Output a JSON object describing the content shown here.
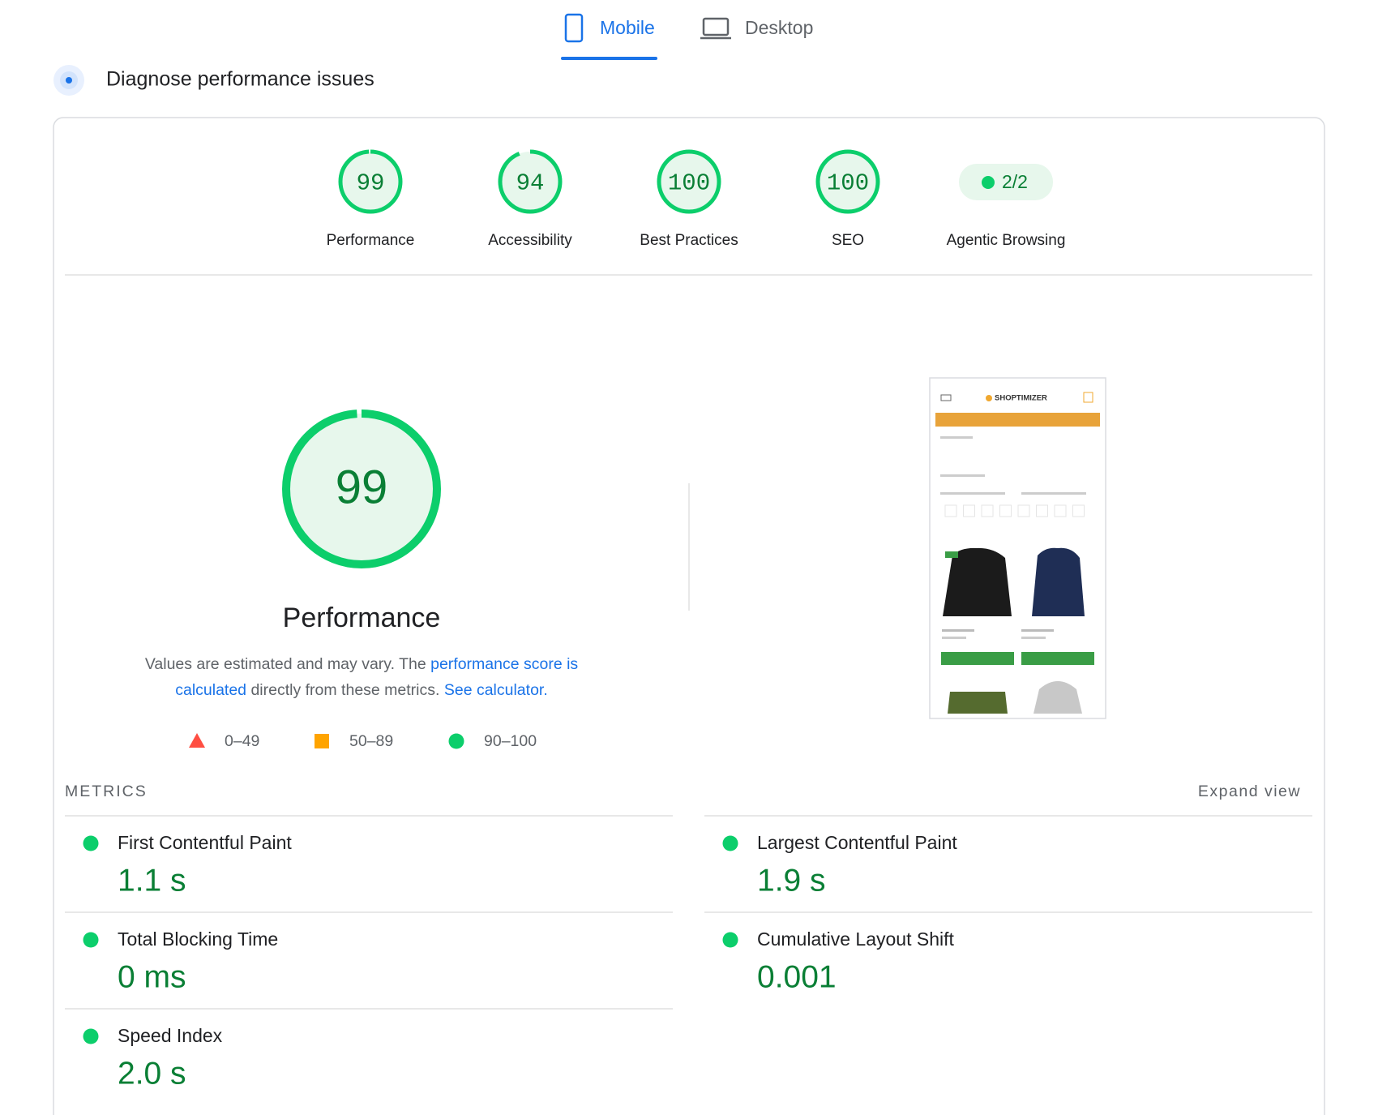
{
  "tabs": [
    "Mobile",
    "Desktop"
  ],
  "active_tab": 0,
  "heading": "Diagnose performance issues",
  "scores": [
    {
      "label": "Performance",
      "score": 99
    },
    {
      "label": "Accessibility",
      "score": 94
    },
    {
      "label": "Best Practices",
      "score": 100
    },
    {
      "label": "SEO",
      "score": 100
    },
    {
      "label": "Agentic Browsing",
      "status": "2/2"
    }
  ],
  "performance": {
    "score": 99,
    "title": "Performance",
    "description": [
      [
        {
          "text": "Values are estimated and may vary. The "
        },
        {
          "text": "performance score is",
          "link": true
        }
      ],
      [
        {
          "text": "calculated",
          "link": true
        },
        {
          "text": " directly from these metrics. "
        },
        {
          "text": "See calculator.",
          "link": true
        }
      ]
    ],
    "legend": [
      "0–49",
      "50–89",
      "90–100"
    ]
  },
  "screenshot": {
    "brand": "SHOPTIMIZER"
  },
  "metrics": {
    "title": "METRICS",
    "expand": "Expand view",
    "items": [
      {
        "name": "First Contentful Paint",
        "value": "1.1 s"
      },
      {
        "name": "Largest Contentful Paint",
        "value": "1.9 s"
      },
      {
        "name": "Total Blocking Time",
        "value": "0 ms"
      },
      {
        "name": "Cumulative Layout Shift",
        "value": "0.001"
      },
      {
        "name": "Speed Index",
        "value": "2.0 s"
      }
    ]
  }
}
